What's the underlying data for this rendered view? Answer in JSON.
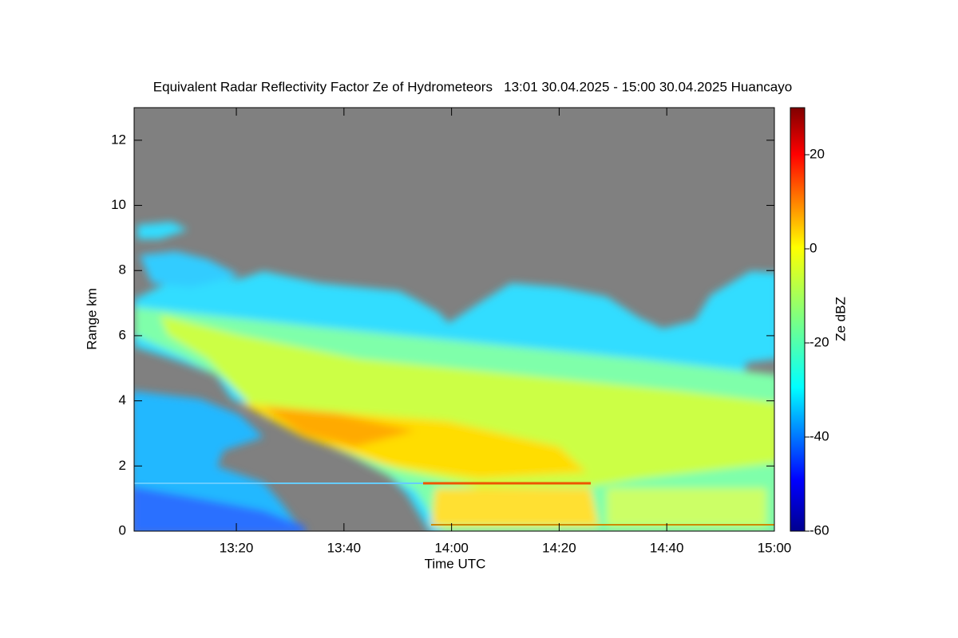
{
  "chart_data": {
    "type": "heatmap",
    "title": "Equivalent Radar Reflectivity Factor Ze of Hydrometeors   13:01 30.04.2025 - 15:00 30.04.2025 Huancayo",
    "x_label": "Time UTC",
    "y_label": "Range km",
    "colorbar_label": "Ze dBZ",
    "xlim": [
      781,
      900
    ],
    "xticks": [
      {
        "value": 800,
        "label": "13:20"
      },
      {
        "value": 820,
        "label": "13:40"
      },
      {
        "value": 840,
        "label": "14:00"
      },
      {
        "value": 860,
        "label": "14:20"
      },
      {
        "value": 880,
        "label": "14:40"
      },
      {
        "value": 900,
        "label": "15:00"
      }
    ],
    "ylim": [
      0,
      13
    ],
    "yticks": [
      0,
      2,
      4,
      6,
      8,
      10,
      12
    ],
    "zlim": [
      -60,
      30
    ],
    "zticks": [
      -60,
      -40,
      -20,
      0,
      20
    ],
    "background_color": "#808080"
  }
}
